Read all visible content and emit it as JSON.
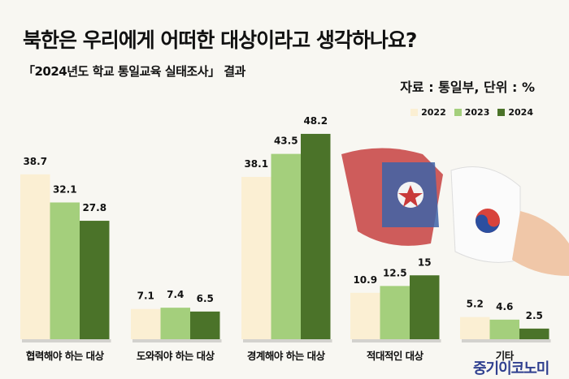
{
  "title": "북한은 우리에게 어떠한 대상이라고 생각하나요?",
  "subtitle": "「2024년도 학교 통일교육 실태조사」 결과",
  "source": "자료 : 통일부, 단위 : %",
  "brand": "중기이코노미",
  "colors": {
    "2022": "#fbefd3",
    "2023": "#a4cf7c",
    "2024": "#4b7329"
  },
  "chart_data": {
    "type": "bar",
    "title": "북한은 우리에게 어떠한 대상이라고 생각하나요?",
    "xlabel": "",
    "ylabel": "%",
    "ylim": [
      0,
      50
    ],
    "grid": false,
    "legend_position": "top-right",
    "categories": [
      "협력해야 하는 대상",
      "도와줘야 하는 대상",
      "경계해야 하는 대상",
      "적대적인 대상",
      "기타"
    ],
    "series": [
      {
        "name": "2022",
        "values": [
          38.7,
          7.1,
          38.1,
          10.9,
          5.2
        ]
      },
      {
        "name": "2023",
        "values": [
          32.1,
          7.4,
          43.5,
          12.5,
          4.6
        ]
      },
      {
        "name": "2024",
        "values": [
          27.8,
          6.5,
          48.2,
          15,
          2.5
        ]
      }
    ]
  }
}
